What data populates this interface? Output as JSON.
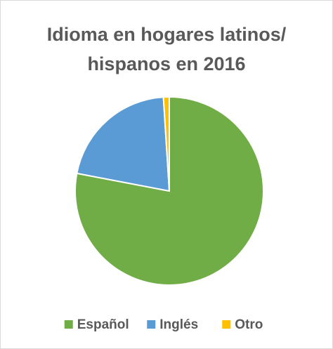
{
  "chart_data": {
    "type": "pie",
    "title": "Idioma en hogares latinos/ hispanos en 2016",
    "categories": [
      "Español",
      "Inglés",
      "Otro"
    ],
    "values": [
      78,
      21,
      1
    ],
    "colors": [
      "#70ad47",
      "#5b9bd5",
      "#ffc000"
    ],
    "legend": "bottom"
  }
}
